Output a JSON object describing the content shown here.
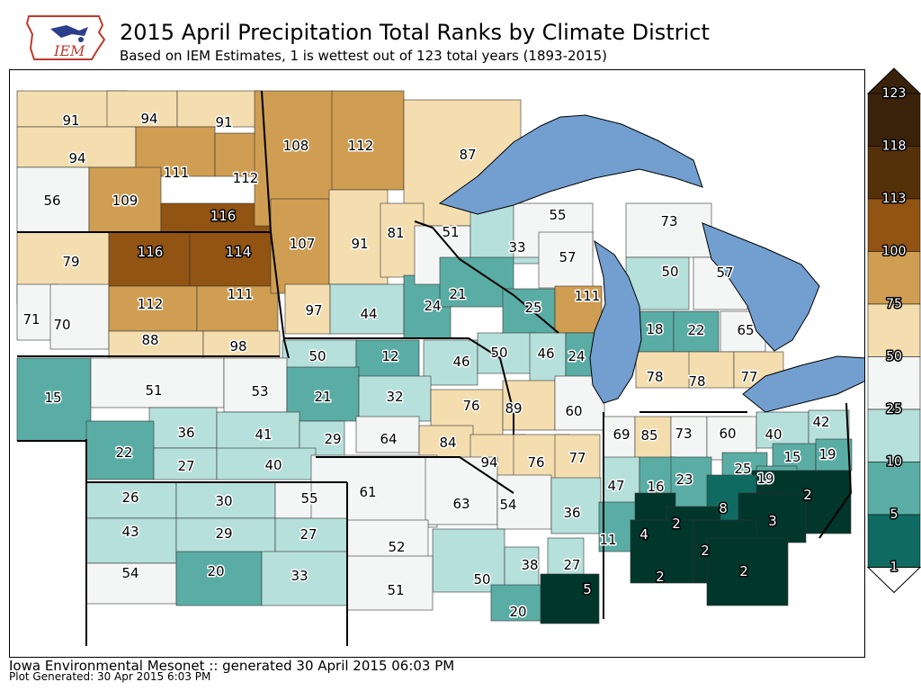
{
  "header": {
    "title": "2015 April Precipitation Total Ranks by Climate District",
    "subtitle": "Based on IEM Estimates, 1 is wettest out of 123 total years (1893-2015)"
  },
  "logo": {
    "text": "IEM"
  },
  "footer": {
    "generated": "Iowa Environmental Mesonet :: generated 30 April 2015 06:03 PM",
    "plot_generated": "Plot Generated: 30 Apr 2015 6:03 PM"
  },
  "colors": {
    "water": "#729fcf",
    "rank_1_5": "#01362b",
    "rank_5_10": "#0f6b62",
    "rank_10_25": "#5aada4",
    "rank_25_50": "#b6e0db",
    "rank_50_75": "#f4f6f5",
    "rank_75_100": "#f4deaf",
    "rank_100_113": "#cf9e52",
    "rank_113_118": "#925412",
    "rank_118_123": "#553109",
    "rank_123": "#3a220a"
  },
  "legend": {
    "ticks": [
      "123",
      "118",
      "113",
      "100",
      "75",
      "50",
      "25",
      "10",
      "5",
      "1"
    ]
  },
  "districts": [
    {
      "rank": "91"
    },
    {
      "rank": "94"
    },
    {
      "rank": "91"
    },
    {
      "rank": "94"
    },
    {
      "rank": "111"
    },
    {
      "rank": "112"
    },
    {
      "rank": "56"
    },
    {
      "rank": "109"
    },
    {
      "rank": "116"
    },
    {
      "rank": "79"
    },
    {
      "rank": "116"
    },
    {
      "rank": "114"
    },
    {
      "rank": "71"
    },
    {
      "rank": "70"
    },
    {
      "rank": "112"
    },
    {
      "rank": "111"
    },
    {
      "rank": "88"
    },
    {
      "rank": "98"
    },
    {
      "rank": "108"
    },
    {
      "rank": "112"
    },
    {
      "rank": "87"
    },
    {
      "rank": "107"
    },
    {
      "rank": "91"
    },
    {
      "rank": "81"
    },
    {
      "rank": "97"
    },
    {
      "rank": "44"
    },
    {
      "rank": "24"
    },
    {
      "rank": "51"
    },
    {
      "rank": "33"
    },
    {
      "rank": "55"
    },
    {
      "rank": "57"
    },
    {
      "rank": "21"
    },
    {
      "rank": "25"
    },
    {
      "rank": "111"
    },
    {
      "rank": "73"
    },
    {
      "rank": "50"
    },
    {
      "rank": "57"
    },
    {
      "rank": "18"
    },
    {
      "rank": "22"
    },
    {
      "rank": "65"
    },
    {
      "rank": "78"
    },
    {
      "rank": "78"
    },
    {
      "rank": "77"
    },
    {
      "rank": "50"
    },
    {
      "rank": "12"
    },
    {
      "rank": "46"
    },
    {
      "rank": "50"
    },
    {
      "rank": "46"
    },
    {
      "rank": "24"
    },
    {
      "rank": "15"
    },
    {
      "rank": "51"
    },
    {
      "rank": "53"
    },
    {
      "rank": "21"
    },
    {
      "rank": "32"
    },
    {
      "rank": "76"
    },
    {
      "rank": "89"
    },
    {
      "rank": "60"
    },
    {
      "rank": "36"
    },
    {
      "rank": "41"
    },
    {
      "rank": "29"
    },
    {
      "rank": "64"
    },
    {
      "rank": "84"
    },
    {
      "rank": "69"
    },
    {
      "rank": "85"
    },
    {
      "rank": "73"
    },
    {
      "rank": "60"
    },
    {
      "rank": "40"
    },
    {
      "rank": "42"
    },
    {
      "rank": "22"
    },
    {
      "rank": "27"
    },
    {
      "rank": "40"
    },
    {
      "rank": "94"
    },
    {
      "rank": "76"
    },
    {
      "rank": "77"
    },
    {
      "rank": "15"
    },
    {
      "rank": "19"
    },
    {
      "rank": "25"
    },
    {
      "rank": "19"
    },
    {
      "rank": "26"
    },
    {
      "rank": "30"
    },
    {
      "rank": "55"
    },
    {
      "rank": "61"
    },
    {
      "rank": "63"
    },
    {
      "rank": "54"
    },
    {
      "rank": "36"
    },
    {
      "rank": "47"
    },
    {
      "rank": "16"
    },
    {
      "rank": "23"
    },
    {
      "rank": "2"
    },
    {
      "rank": "43"
    },
    {
      "rank": "29"
    },
    {
      "rank": "27"
    },
    {
      "rank": "8"
    },
    {
      "rank": "3"
    },
    {
      "rank": "4"
    },
    {
      "rank": "2"
    },
    {
      "rank": "11"
    },
    {
      "rank": "54"
    },
    {
      "rank": "20"
    },
    {
      "rank": "33"
    },
    {
      "rank": "52"
    },
    {
      "rank": "50"
    },
    {
      "rank": "38"
    },
    {
      "rank": "27"
    },
    {
      "rank": "2"
    },
    {
      "rank": "2"
    },
    {
      "rank": "2"
    },
    {
      "rank": "51"
    },
    {
      "rank": "5"
    },
    {
      "rank": "20"
    }
  ]
}
